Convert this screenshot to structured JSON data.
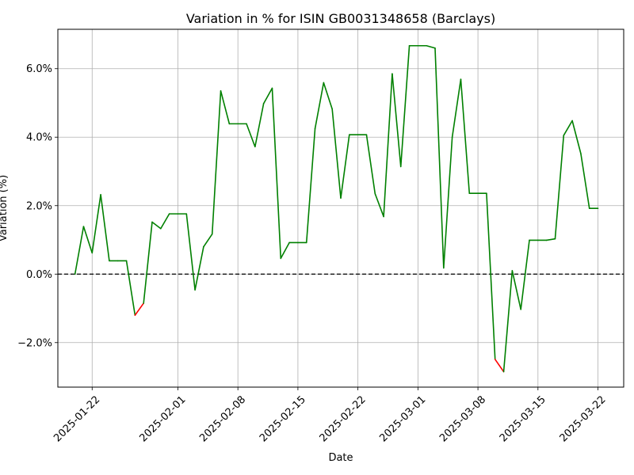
{
  "chart_data": {
    "type": "line",
    "title": "Variation in % for ISIN GB0031348658 (Barclays)",
    "xlabel": "Date",
    "ylabel": "Variation (%)",
    "x_ticks": [
      "2025-01-22",
      "2025-02-01",
      "2025-02-08",
      "2025-02-15",
      "2025-02-22",
      "2025-03-01",
      "2025-03-08",
      "2025-03-15",
      "2025-03-22"
    ],
    "y_ticks": [
      "−2.0%",
      "0.0%",
      "2.0%",
      "4.0%",
      "6.0%"
    ],
    "y_tick_values": [
      -2,
      0,
      2,
      4,
      6
    ],
    "ylim": [
      -3.3,
      7.15
    ],
    "xlim": [
      "2025-01-18",
      "2025-03-25"
    ],
    "grid": true,
    "reference_line": 0,
    "colors": {
      "positive": "#008000",
      "negative": "#ff0000",
      "reference": "#000000",
      "grid": "#b0b0b0"
    },
    "points": [
      {
        "x": "2025-01-20",
        "y": 0.0
      },
      {
        "x": "2025-01-21",
        "y": 1.39
      },
      {
        "x": "2025-01-22",
        "y": 0.62
      },
      {
        "x": "2025-01-23",
        "y": 2.32
      },
      {
        "x": "2025-01-24",
        "y": 0.39
      },
      {
        "x": "2025-01-25",
        "y": 0.39
      },
      {
        "x": "2025-01-26",
        "y": 0.39
      },
      {
        "x": "2025-01-27",
        "y": -1.2
      },
      {
        "x": "2025-01-28",
        "y": -0.85
      },
      {
        "x": "2025-01-29",
        "y": 1.52
      },
      {
        "x": "2025-01-30",
        "y": 1.33
      },
      {
        "x": "2025-01-31",
        "y": 1.76
      },
      {
        "x": "2025-02-01",
        "y": 1.76
      },
      {
        "x": "2025-02-02",
        "y": 1.76
      },
      {
        "x": "2025-02-03",
        "y": -0.46
      },
      {
        "x": "2025-02-04",
        "y": 0.8
      },
      {
        "x": "2025-02-05",
        "y": 1.17
      },
      {
        "x": "2025-02-06",
        "y": 5.35
      },
      {
        "x": "2025-02-07",
        "y": 4.39
      },
      {
        "x": "2025-02-08",
        "y": 4.39
      },
      {
        "x": "2025-02-09",
        "y": 4.39
      },
      {
        "x": "2025-02-10",
        "y": 3.72
      },
      {
        "x": "2025-02-11",
        "y": 4.98
      },
      {
        "x": "2025-02-12",
        "y": 5.43
      },
      {
        "x": "2025-02-13",
        "y": 0.46
      },
      {
        "x": "2025-02-14",
        "y": 0.92
      },
      {
        "x": "2025-02-15",
        "y": 0.92
      },
      {
        "x": "2025-02-16",
        "y": 0.92
      },
      {
        "x": "2025-02-17",
        "y": 4.25
      },
      {
        "x": "2025-02-18",
        "y": 5.59
      },
      {
        "x": "2025-02-19",
        "y": 4.82
      },
      {
        "x": "2025-02-20",
        "y": 2.22
      },
      {
        "x": "2025-02-21",
        "y": 4.07
      },
      {
        "x": "2025-02-22",
        "y": 4.07
      },
      {
        "x": "2025-02-23",
        "y": 4.07
      },
      {
        "x": "2025-02-24",
        "y": 2.35
      },
      {
        "x": "2025-02-25",
        "y": 1.68
      },
      {
        "x": "2025-02-26",
        "y": 5.85
      },
      {
        "x": "2025-02-27",
        "y": 3.14
      },
      {
        "x": "2025-02-28",
        "y": 6.67
      },
      {
        "x": "2025-03-01",
        "y": 6.67
      },
      {
        "x": "2025-03-02",
        "y": 6.67
      },
      {
        "x": "2025-03-03",
        "y": 6.6
      },
      {
        "x": "2025-03-04",
        "y": 0.18
      },
      {
        "x": "2025-03-05",
        "y": 4.0
      },
      {
        "x": "2025-03-06",
        "y": 5.69
      },
      {
        "x": "2025-03-07",
        "y": 2.36
      },
      {
        "x": "2025-03-08",
        "y": 2.36
      },
      {
        "x": "2025-03-09",
        "y": 2.36
      },
      {
        "x": "2025-03-10",
        "y": -2.49
      },
      {
        "x": "2025-03-11",
        "y": -2.85
      },
      {
        "x": "2025-03-12",
        "y": 0.1
      },
      {
        "x": "2025-03-13",
        "y": -1.03
      },
      {
        "x": "2025-03-14",
        "y": 0.99
      },
      {
        "x": "2025-03-15",
        "y": 0.99
      },
      {
        "x": "2025-03-16",
        "y": 0.99
      },
      {
        "x": "2025-03-17",
        "y": 1.03
      },
      {
        "x": "2025-03-18",
        "y": 4.05
      },
      {
        "x": "2025-03-19",
        "y": 4.48
      },
      {
        "x": "2025-03-20",
        "y": 3.52
      },
      {
        "x": "2025-03-21",
        "y": 1.92
      },
      {
        "x": "2025-03-22",
        "y": 1.92
      }
    ]
  }
}
